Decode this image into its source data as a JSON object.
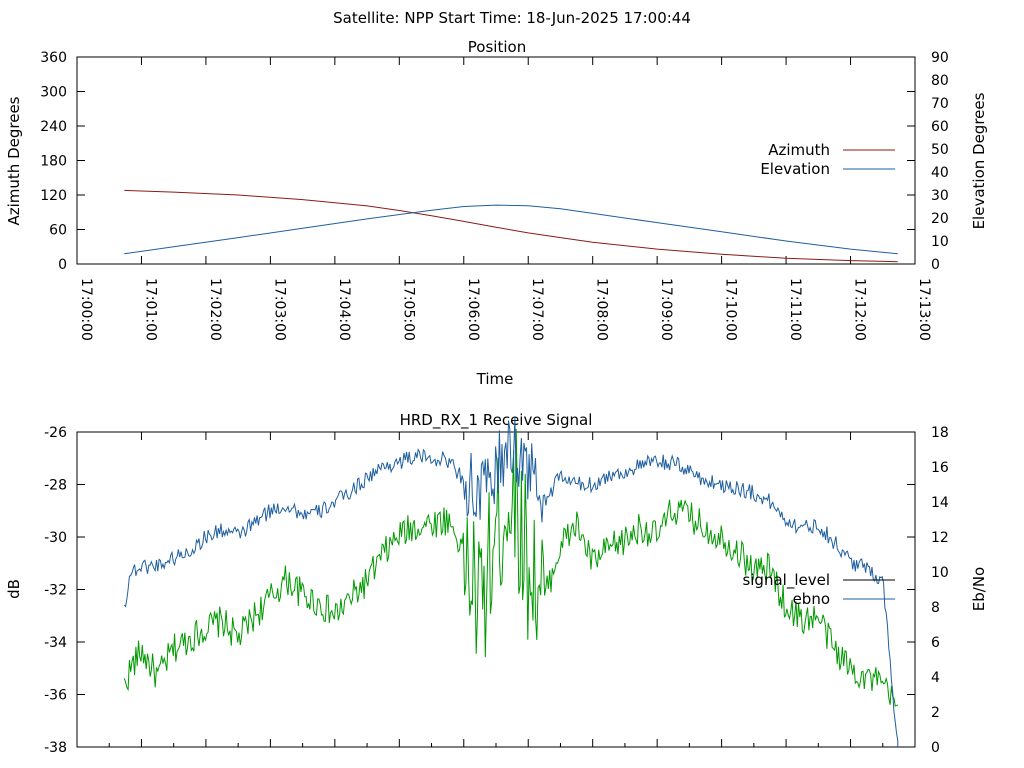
{
  "header": {
    "title": "Satellite: NPP    Start Time: 18-Jun-2025 17:00:44"
  },
  "colors": {
    "azimuth": "#8b1a1a",
    "elevation": "#1f5fa0",
    "signal_level": "#009900",
    "ebno": "#1f5fa0",
    "legend_signal_level": "#000000"
  },
  "chart_data": [
    {
      "type": "line",
      "title": "Position",
      "xlabel": "Time",
      "ylabel": "Azimuth Degrees",
      "y2label": "Elevation Degrees",
      "x_ticks": [
        "17:00:00",
        "17:01:00",
        "17:02:00",
        "17:03:00",
        "17:04:00",
        "17:05:00",
        "17:06:00",
        "17:07:00",
        "17:08:00",
        "17:09:00",
        "17:10:00",
        "17:11:00",
        "17:12:00",
        "17:13:00"
      ],
      "xlim": [
        "17:00:00",
        "17:13:00"
      ],
      "y_ticks": [
        0,
        60,
        120,
        180,
        240,
        300,
        360
      ],
      "ylim": [
        0,
        360
      ],
      "y2_ticks": [
        0,
        10,
        20,
        30,
        40,
        50,
        60,
        70,
        80,
        90
      ],
      "y2lim": [
        0,
        90
      ],
      "legend_position": "right",
      "series": [
        {
          "name": "Azimuth",
          "axis": "y1",
          "color": "#8b1a1a",
          "x": [
            "17:00:44",
            "17:01:30",
            "17:02:30",
            "17:03:30",
            "17:04:30",
            "17:05:00",
            "17:05:30",
            "17:06:00",
            "17:06:30",
            "17:07:00",
            "17:07:30",
            "17:08:00",
            "17:09:00",
            "17:10:00",
            "17:11:00",
            "17:12:00",
            "17:12:44"
          ],
          "values": [
            128,
            125,
            120,
            112,
            101,
            93,
            84,
            74,
            64,
            54,
            46,
            38,
            26,
            17,
            10,
            6,
            4
          ]
        },
        {
          "name": "Elevation",
          "axis": "y2",
          "color": "#1f5fa0",
          "x": [
            "17:00:44",
            "17:01:30",
            "17:02:30",
            "17:03:30",
            "17:04:30",
            "17:05:30",
            "17:06:00",
            "17:06:30",
            "17:07:00",
            "17:07:30",
            "17:08:00",
            "17:09:00",
            "17:10:00",
            "17:11:00",
            "17:12:00",
            "17:12:44"
          ],
          "values": [
            4.5,
            7.5,
            11.5,
            15.5,
            19.6,
            23.4,
            25,
            25.6,
            25.3,
            24,
            22,
            18,
            14,
            10,
            6.5,
            4.5
          ]
        }
      ]
    },
    {
      "type": "line",
      "title": "HRD_RX_1 Receive Signal",
      "xlabel": "",
      "ylabel": "dB",
      "y2label": "Eb/No",
      "y_ticks": [
        -38,
        -36,
        -34,
        -32,
        -30,
        -28,
        -26
      ],
      "ylim": [
        -38,
        -26
      ],
      "y2_ticks": [
        0,
        2,
        4,
        6,
        8,
        10,
        12,
        14,
        16,
        18
      ],
      "y2lim": [
        0,
        18
      ],
      "xlim": [
        "17:00:00",
        "17:13:00"
      ],
      "legend_position": "right",
      "series": [
        {
          "name": "signal_level",
          "axis": "y2",
          "color": "#009900",
          "x": [
            "17:00:44",
            "17:00:50",
            "17:01:00",
            "17:01:15",
            "17:01:30",
            "17:01:45",
            "17:02:00",
            "17:02:15",
            "17:02:30",
            "17:02:45",
            "17:03:00",
            "17:03:15",
            "17:03:30",
            "17:03:45",
            "17:04:00",
            "17:04:15",
            "17:04:30",
            "17:04:45",
            "17:05:00",
            "17:05:15",
            "17:05:30",
            "17:05:45",
            "17:06:00",
            "17:06:15",
            "17:06:30",
            "17:06:45",
            "17:07:00",
            "17:07:15",
            "17:07:30",
            "17:07:45",
            "17:08:00",
            "17:08:15",
            "17:08:30",
            "17:08:45",
            "17:09:00",
            "17:09:15",
            "17:09:30",
            "17:09:45",
            "17:10:00",
            "17:10:15",
            "17:10:30",
            "17:10:45",
            "17:11:00",
            "17:11:15",
            "17:11:30",
            "17:11:45",
            "17:12:00",
            "17:12:15",
            "17:12:30",
            "17:12:44"
          ],
          "values": [
            3.5,
            4.5,
            5.5,
            4.0,
            5.6,
            6.2,
            6.8,
            7.2,
            6.2,
            7.5,
            8.5,
            9.6,
            8.7,
            8.2,
            7.5,
            8.5,
            9.5,
            11.0,
            12.1,
            12.6,
            12.8,
            13.0,
            11.3,
            7.8,
            12.0,
            15.0,
            10.5,
            8.5,
            11.5,
            12.7,
            10.5,
            11.3,
            11.8,
            12.6,
            12.0,
            13.6,
            13.2,
            12.5,
            12.0,
            11.2,
            10.1,
            10.2,
            8.0,
            7.3,
            7.4,
            5.6,
            4.5,
            4.0,
            3.5,
            2.2
          ]
        },
        {
          "name": "ebno",
          "axis": "y2",
          "color": "#1f5fa0",
          "x": [
            "17:00:44",
            "17:00:50",
            "17:01:00",
            "17:01:15",
            "17:01:30",
            "17:01:45",
            "17:02:00",
            "17:02:15",
            "17:02:30",
            "17:02:45",
            "17:03:00",
            "17:03:15",
            "17:03:30",
            "17:03:45",
            "17:04:00",
            "17:04:15",
            "17:04:30",
            "17:04:45",
            "17:05:00",
            "17:05:15",
            "17:05:30",
            "17:05:45",
            "17:06:00",
            "17:06:15",
            "17:06:30",
            "17:06:45",
            "17:07:00",
            "17:07:15",
            "17:07:30",
            "17:07:45",
            "17:08:00",
            "17:08:15",
            "17:08:30",
            "17:08:45",
            "17:09:00",
            "17:09:15",
            "17:09:30",
            "17:09:45",
            "17:10:00",
            "17:10:15",
            "17:10:30",
            "17:10:45",
            "17:11:00",
            "17:11:15",
            "17:11:30",
            "17:11:45",
            "17:12:00",
            "17:12:15",
            "17:12:30",
            "17:12:44"
          ],
          "values": [
            8.0,
            10.0,
            10.3,
            10.4,
            10.8,
            11.2,
            12.0,
            12.4,
            12.1,
            12.8,
            13.5,
            13.8,
            13.3,
            13.4,
            14.0,
            14.6,
            15.4,
            16.0,
            16.3,
            16.6,
            16.5,
            16.4,
            15.3,
            14.2,
            15.8,
            17.2,
            16.0,
            14.0,
            15.5,
            15.0,
            15.0,
            15.5,
            15.7,
            16.1,
            16.3,
            16.2,
            15.8,
            15.2,
            15.0,
            14.8,
            14.5,
            14.0,
            13.0,
            12.5,
            12.7,
            11.7,
            10.6,
            10.2,
            9.6,
            0.0
          ]
        }
      ]
    }
  ]
}
